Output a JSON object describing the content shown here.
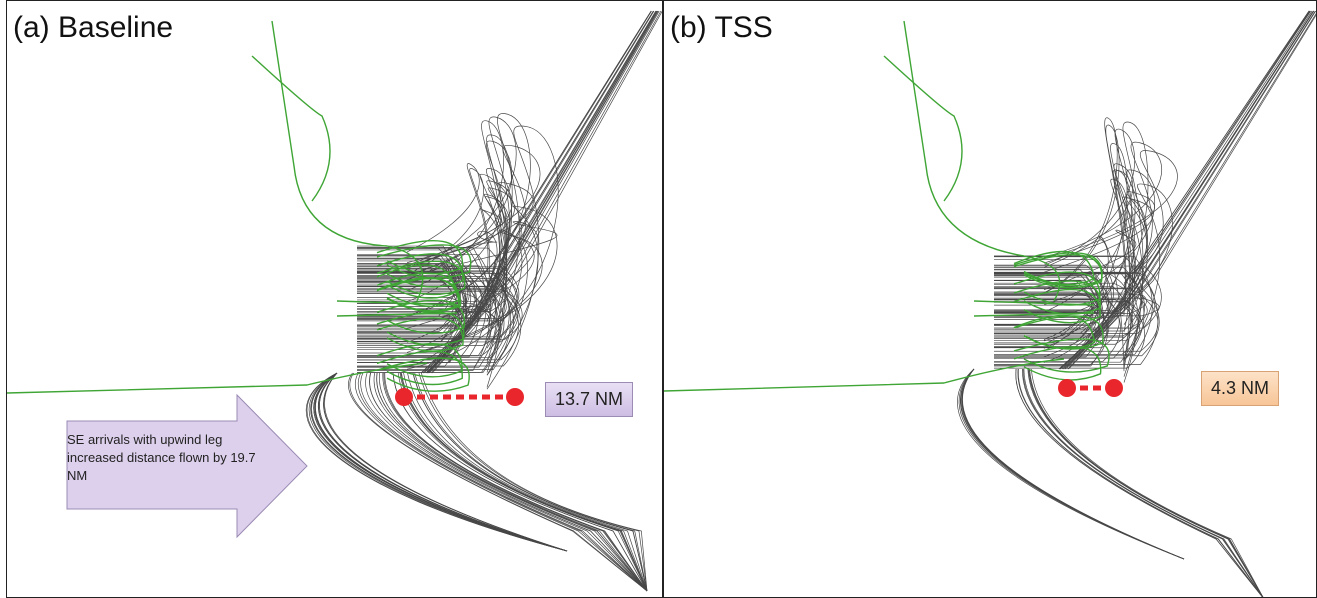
{
  "panels": [
    {
      "title": "(a) Baseline",
      "distance_label": "13.7 NM",
      "distance_box_color": "#d8cce9",
      "annotation": "SE arrivals with upwind leg increased distance flown by 19.7 NM"
    },
    {
      "title": "(b) TSS",
      "distance_label": "4.3 NM",
      "distance_box_color": "#fbd3ae"
    }
  ],
  "colors": {
    "green_tracks": "#3fa535",
    "black_tracks": "#1a1a1a",
    "distance_marker": "#e8262b",
    "arrow_fill": "#ddd0ec"
  }
}
